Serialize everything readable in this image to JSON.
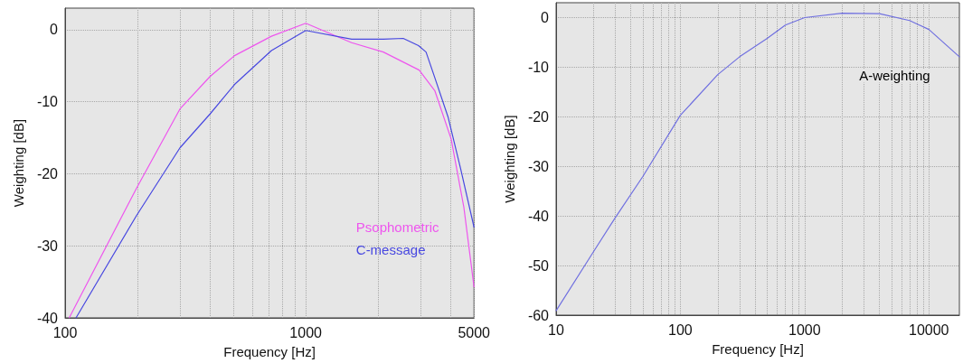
{
  "chart_data": [
    {
      "type": "line",
      "xlabel": "Frequency [Hz]",
      "ylabel": "Weighting [dB]",
      "log": "x",
      "xlim": [
        100,
        5000
      ],
      "xticks": [
        100,
        1000,
        5000
      ],
      "ylim": [
        -40,
        3
      ],
      "yticks": [
        -40,
        -30,
        -20,
        -10,
        0
      ],
      "grid": true,
      "legend": "bottom right",
      "marker": "none",
      "line_style": "solid",
      "series": [
        {
          "name": "Psophometric",
          "color": "#ee55ee",
          "x": [
            104,
            198,
            300,
            400,
            506,
            720,
            1000,
            1550,
            2100,
            2960,
            3440,
            4020,
            4540,
            5000
          ],
          "values": [
            -40,
            -22,
            -11,
            -6.5,
            -3.6,
            -0.9,
            0.9,
            -1.8,
            -3.1,
            -5.6,
            -8.5,
            -15.2,
            -24.7,
            -35.7
          ]
        },
        {
          "name": "C-message",
          "color": "#4848e0",
          "x": [
            111,
            198,
            300,
            400,
            506,
            720,
            1000,
            1550,
            2100,
            2540,
            2940,
            3160,
            3440,
            3900,
            4400,
            5000
          ],
          "values": [
            -40,
            -25.8,
            -16.4,
            -11.7,
            -7.6,
            -2.9,
            -0.1,
            -1.3,
            -1.3,
            -1.2,
            -2.2,
            -3.1,
            -6.7,
            -12.1,
            -19.3,
            -27.4
          ]
        }
      ]
    },
    {
      "type": "line",
      "xlabel": "Frequency [Hz]",
      "ylabel": "Weighting [dB]",
      "log": "x",
      "xlim": [
        10,
        17600
      ],
      "xticks": [
        10,
        100,
        1000,
        10000
      ],
      "ylim": [
        -60,
        3
      ],
      "yticks": [
        -60,
        -50,
        -40,
        -30,
        -20,
        -10,
        0
      ],
      "grid": true,
      "marker": "none",
      "line_style": "solid",
      "annotations": [
        "A-weighting"
      ],
      "series": [
        {
          "color": "#7070e0",
          "x": [
            10,
            20,
            30,
            50,
            100,
            200,
            300,
            500,
            700,
            1000,
            2000,
            4000,
            7000,
            10000,
            17600
          ],
          "values": [
            -59.1,
            -47.2,
            -40.3,
            -32,
            -19.7,
            -11.5,
            -7.9,
            -4.2,
            -1.5,
            0,
            0.9,
            0.8,
            -0.6,
            -2.4,
            -7.9
          ]
        }
      ]
    }
  ]
}
